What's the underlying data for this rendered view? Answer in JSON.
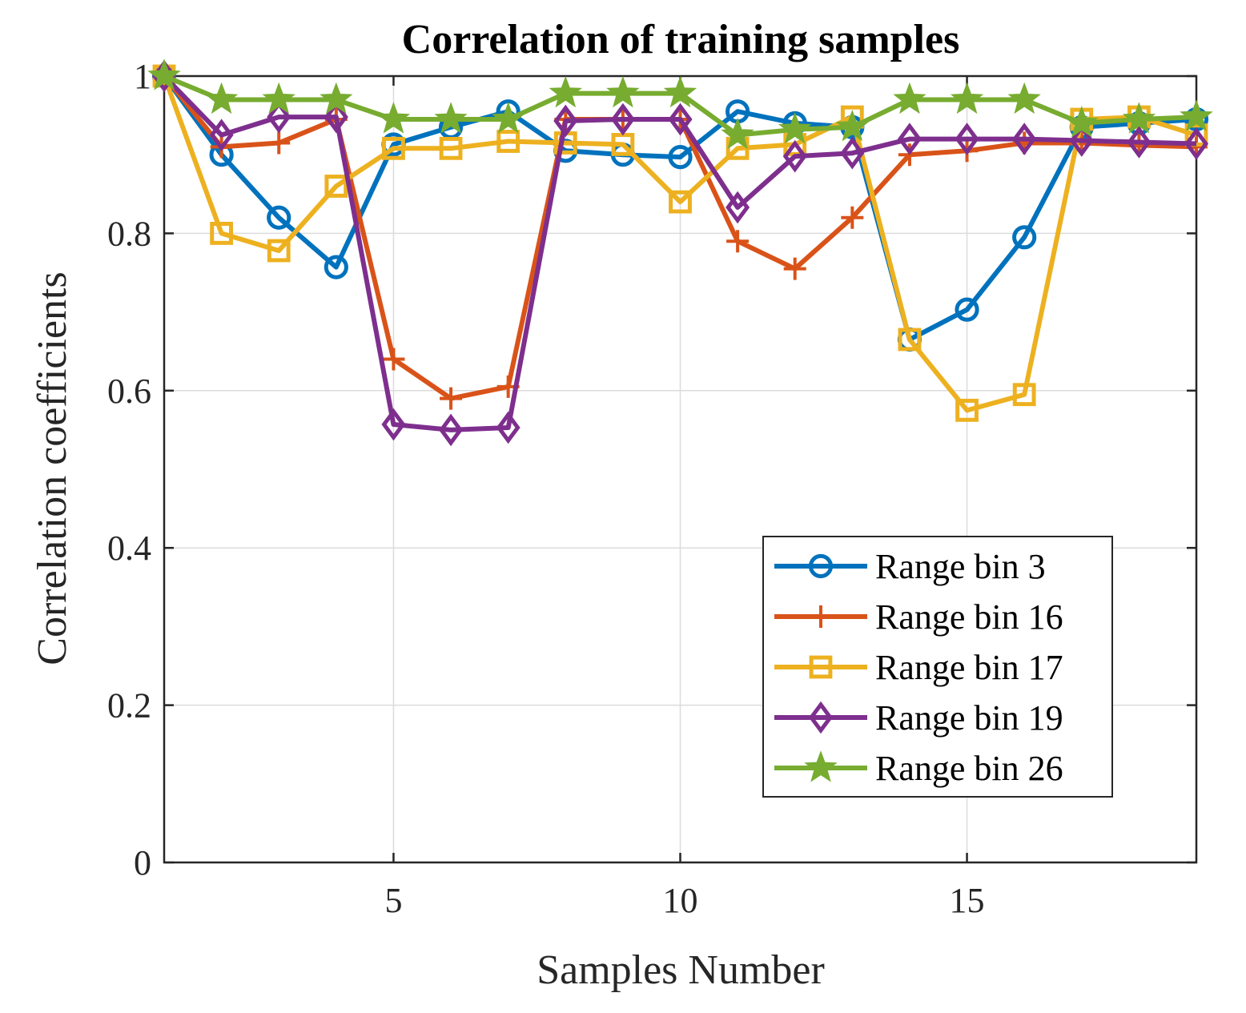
{
  "chart_data": {
    "type": "line",
    "title": "Correlation of training samples",
    "xlabel": "Samples Number",
    "ylabel": "Correlation coefficients",
    "xlim": [
      1,
      19
    ],
    "ylim": [
      0,
      1
    ],
    "xticks": [
      5,
      10,
      15
    ],
    "yticks": [
      0,
      0.2,
      0.4,
      0.6,
      0.8,
      1
    ],
    "ytick_labels": [
      "0",
      "0.2",
      "0.4",
      "0.6",
      "0.8",
      "1"
    ],
    "xtick_labels": [
      "5",
      "10",
      "15"
    ],
    "grid": true,
    "legend_position": "lower-right",
    "x": [
      1,
      2,
      3,
      4,
      5,
      6,
      7,
      8,
      9,
      10,
      11,
      12,
      13,
      14,
      15,
      16,
      17,
      18,
      19
    ],
    "series": [
      {
        "name": "Range bin 3",
        "color": "#0072BD",
        "marker": "circle",
        "values": [
          1.0,
          0.9,
          0.82,
          0.757,
          0.913,
          0.935,
          0.955,
          0.905,
          0.9,
          0.897,
          0.955,
          0.94,
          0.935,
          0.665,
          0.703,
          0.795,
          0.935,
          0.94,
          0.945
        ]
      },
      {
        "name": "Range bin 16",
        "color": "#D95319",
        "marker": "plus",
        "values": [
          1.0,
          0.91,
          0.915,
          0.945,
          0.64,
          0.59,
          0.605,
          0.945,
          0.945,
          0.945,
          0.79,
          0.755,
          0.82,
          0.9,
          0.905,
          0.915,
          0.915,
          0.912,
          0.91
        ]
      },
      {
        "name": "Range bin 17",
        "color": "#EDB120",
        "marker": "square",
        "values": [
          1.0,
          0.8,
          0.778,
          0.86,
          0.908,
          0.908,
          0.917,
          0.915,
          0.913,
          0.84,
          0.908,
          0.913,
          0.948,
          0.665,
          0.575,
          0.595,
          0.945,
          0.948,
          0.925
        ]
      },
      {
        "name": "Range bin 19",
        "color": "#7E2F8E",
        "marker": "diamond",
        "values": [
          1.0,
          0.925,
          0.948,
          0.948,
          0.557,
          0.55,
          0.553,
          0.943,
          0.945,
          0.945,
          0.833,
          0.898,
          0.902,
          0.92,
          0.92,
          0.92,
          0.918,
          0.916,
          0.914
        ]
      },
      {
        "name": "Range bin 26",
        "color": "#77AC30",
        "marker": "star",
        "values": [
          1.0,
          0.97,
          0.97,
          0.97,
          0.945,
          0.945,
          0.945,
          0.978,
          0.978,
          0.978,
          0.925,
          0.932,
          0.935,
          0.97,
          0.97,
          0.97,
          0.94,
          0.945,
          0.948
        ]
      }
    ]
  }
}
